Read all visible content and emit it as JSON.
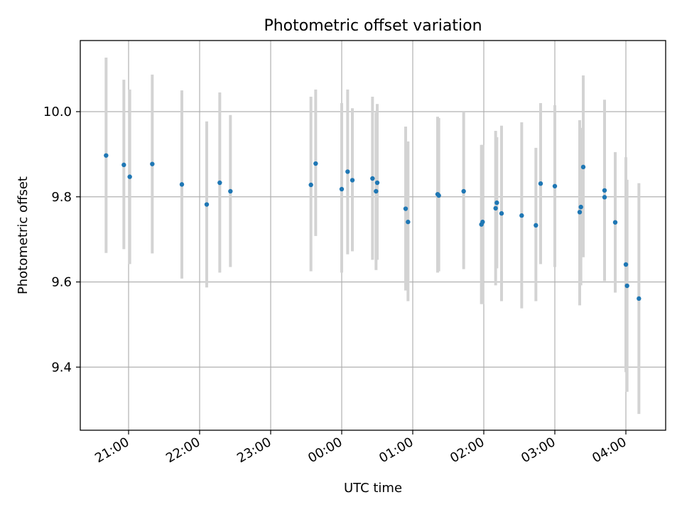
{
  "chart_data": {
    "type": "scatter",
    "title": "Photometric offset variation",
    "xlabel": "UTC time",
    "ylabel": "Photometric offset",
    "grid": true,
    "x_unit": "UTC hour",
    "xlim": [
      20.35,
      4.55
    ],
    "xlim_note": "wraps past midnight",
    "ylim": [
      9.25,
      10.17
    ],
    "x_ticks": [
      {
        "hour": 21,
        "label": "21:00"
      },
      {
        "hour": 22,
        "label": "22:00"
      },
      {
        "hour": 23,
        "label": "23:00"
      },
      {
        "hour": 0,
        "label": "00:00"
      },
      {
        "hour": 1,
        "label": "01:00"
      },
      {
        "hour": 2,
        "label": "02:00"
      },
      {
        "hour": 3,
        "label": "03:00"
      },
      {
        "hour": 4,
        "label": "04:00"
      }
    ],
    "y_ticks": [
      {
        "value": 9.4,
        "label": "9.4"
      },
      {
        "value": 9.6,
        "label": "9.6"
      },
      {
        "value": 9.8,
        "label": "9.8"
      },
      {
        "value": 10.0,
        "label": "10.0"
      }
    ],
    "series": [
      {
        "marker_color": "#1f77b4",
        "errorbar_color": "#d3d3d3",
        "points": [
          {
            "x": "20:41",
            "y": 9.897,
            "low": 9.668,
            "high": 10.127
          },
          {
            "x": "20:56",
            "y": 9.875,
            "low": 9.677,
            "high": 10.075
          },
          {
            "x": "21:01",
            "y": 9.847,
            "low": 9.642,
            "high": 10.052
          },
          {
            "x": "21:20",
            "y": 9.877,
            "low": 9.667,
            "high": 10.087
          },
          {
            "x": "21:45",
            "y": 9.829,
            "low": 9.608,
            "high": 10.05
          },
          {
            "x": "22:06",
            "y": 9.782,
            "low": 9.587,
            "high": 9.977
          },
          {
            "x": "22:17",
            "y": 9.833,
            "low": 9.622,
            "high": 10.045
          },
          {
            "x": "22:26",
            "y": 9.813,
            "low": 9.635,
            "high": 9.992
          },
          {
            "x": "23:34",
            "y": 9.828,
            "low": 9.625,
            "high": 10.035
          },
          {
            "x": "23:38",
            "y": 9.878,
            "low": 9.708,
            "high": 10.052
          },
          {
            "x": "00:00",
            "y": 9.818,
            "low": 9.622,
            "high": 10.02
          },
          {
            "x": "00:05",
            "y": 9.859,
            "low": 9.665,
            "high": 10.052
          },
          {
            "x": "00:09",
            "y": 9.839,
            "low": 9.672,
            "high": 10.008
          },
          {
            "x": "00:26",
            "y": 9.843,
            "low": 9.652,
            "high": 10.035
          },
          {
            "x": "00:29",
            "y": 9.813,
            "low": 9.628,
            "high": 9.998
          },
          {
            "x": "00:30",
            "y": 9.833,
            "low": 9.652,
            "high": 10.018
          },
          {
            "x": "00:54",
            "y": 9.772,
            "low": 9.58,
            "high": 9.965
          },
          {
            "x": "00:56",
            "y": 9.741,
            "low": 9.555,
            "high": 9.93
          },
          {
            "x": "01:21",
            "y": 9.806,
            "low": 9.622,
            "high": 9.988
          },
          {
            "x": "01:22",
            "y": 9.803,
            "low": 9.625,
            "high": 9.985
          },
          {
            "x": "01:43",
            "y": 9.813,
            "low": 9.63,
            "high": 10.0
          },
          {
            "x": "01:58",
            "y": 9.735,
            "low": 9.548,
            "high": 9.922
          },
          {
            "x": "01:59",
            "y": 9.741,
            "low": 9.548,
            "high": 9.922
          },
          {
            "x": "02:10",
            "y": 9.773,
            "low": 9.592,
            "high": 9.955
          },
          {
            "x": "02:11",
            "y": 9.786,
            "low": 9.632,
            "high": 9.94
          },
          {
            "x": "02:15",
            "y": 9.761,
            "low": 9.555,
            "high": 9.967
          },
          {
            "x": "02:32",
            "y": 9.756,
            "low": 9.538,
            "high": 9.975
          },
          {
            "x": "02:44",
            "y": 9.733,
            "low": 9.555,
            "high": 9.915
          },
          {
            "x": "02:48",
            "y": 9.831,
            "low": 9.642,
            "high": 10.02
          },
          {
            "x": "03:00",
            "y": 9.825,
            "low": 9.635,
            "high": 10.015
          },
          {
            "x": "03:21",
            "y": 9.764,
            "low": 9.545,
            "high": 9.98
          },
          {
            "x": "03:22",
            "y": 9.776,
            "low": 9.592,
            "high": 9.962
          },
          {
            "x": "03:24",
            "y": 9.87,
            "low": 9.658,
            "high": 10.085
          },
          {
            "x": "03:42",
            "y": 9.799,
            "low": 9.605,
            "high": 9.995
          },
          {
            "x": "03:42",
            "y": 9.815,
            "low": 9.602,
            "high": 10.028
          },
          {
            "x": "03:51",
            "y": 9.74,
            "low": 9.575,
            "high": 9.905
          },
          {
            "x": "04:00",
            "y": 9.641,
            "low": 9.388,
            "high": 9.893
          },
          {
            "x": "04:01",
            "y": 9.591,
            "low": 9.342,
            "high": 9.84
          },
          {
            "x": "04:11",
            "y": 9.561,
            "low": 9.29,
            "high": 9.832
          }
        ]
      }
    ]
  }
}
